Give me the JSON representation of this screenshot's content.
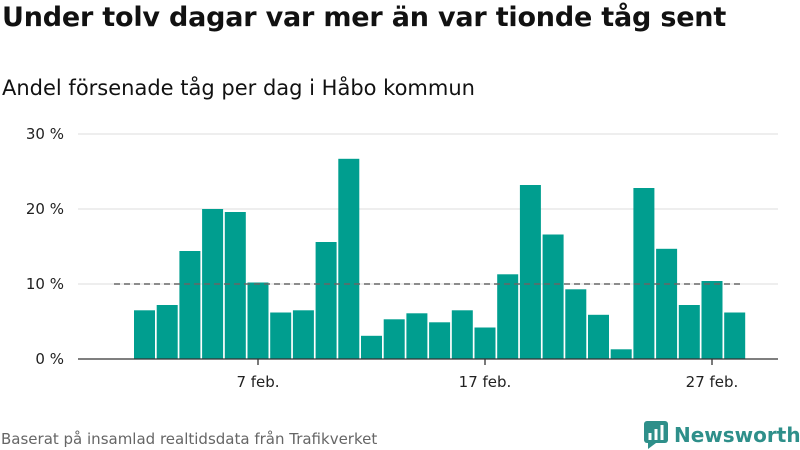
{
  "title": "Under tolv dagar var mer än var tionde tåg sent",
  "subtitle": "Andel försenade tåg per dag i Håbo kommun",
  "footer": "Baserat på insamlad realtidsdata från Trafikverket",
  "brand": "Newsworthy",
  "colors": {
    "bar": "#009e8f",
    "reference_line": "#666666",
    "grid": "#dddddd",
    "axis": "#333333",
    "brand": "#2e8f8a"
  },
  "chart_data": {
    "type": "bar",
    "x_label_ticks": [
      "7 feb.",
      "17 feb.",
      "27 feb."
    ],
    "y_tick_labels": [
      "0 %",
      "10 %",
      "20 %",
      "30 %"
    ],
    "ylim": [
      0,
      30
    ],
    "reference_line": 10,
    "grid": true,
    "categories": [
      "2 feb.",
      "3 feb.",
      "4 feb.",
      "5 feb.",
      "6 feb.",
      "7 feb.",
      "8 feb.",
      "9 feb.",
      "10 feb.",
      "11 feb.",
      "12 feb.",
      "13 feb.",
      "14 feb.",
      "15 feb.",
      "16 feb.",
      "17 feb.",
      "18 feb.",
      "19 feb.",
      "20 feb.",
      "21 feb.",
      "22 feb.",
      "23 feb.",
      "24 feb.",
      "25 feb.",
      "26 feb.",
      "27 feb.",
      "28 feb."
    ],
    "values": [
      6.5,
      7.2,
      14.4,
      20.0,
      19.6,
      10.2,
      6.2,
      6.5,
      15.6,
      26.7,
      3.1,
      5.3,
      6.1,
      4.9,
      6.5,
      4.2,
      11.3,
      23.2,
      16.6,
      9.3,
      5.9,
      1.3,
      22.8,
      14.7,
      7.2,
      10.4,
      6.2
    ]
  }
}
